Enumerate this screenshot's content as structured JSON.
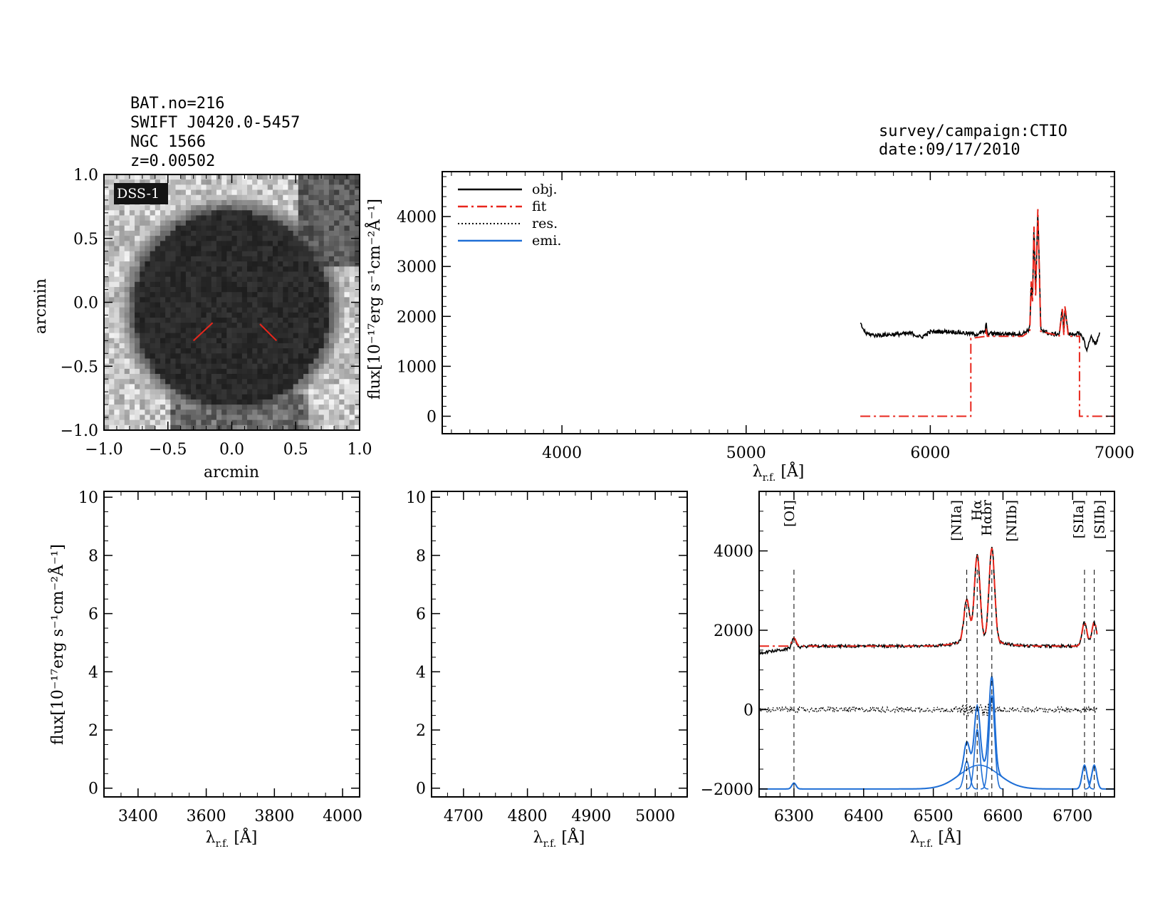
{
  "header": {
    "left_lines": [
      "BAT.no=216",
      "SWIFT J0420.0-5457",
      "NGC 1566",
      "z=0.00502"
    ],
    "right_lines": [
      "survey/campaign:CTIO",
      "date:09/17/2010"
    ]
  },
  "colors": {
    "obj": "#000000",
    "fit": "#e8261c",
    "res": "#000000",
    "emi": "#1f6fd6",
    "marker": "#e8261c"
  },
  "chart_data": [
    {
      "id": "image",
      "type": "heatmap",
      "label": "DSS-1",
      "xlabel": "arcmin",
      "ylabel": "arcmin",
      "xlim": [
        -1.0,
        1.0
      ],
      "ylim": [
        -1.0,
        1.0
      ],
      "xticks": [
        "−1.0",
        "−0.5",
        "0.0",
        "0.5",
        "1.0"
      ],
      "yticks": [
        "−1.0",
        "−0.5",
        "0.0",
        "0.5",
        "1.0"
      ],
      "xtick_values": [
        -1.0,
        -0.5,
        0.0,
        0.5,
        1.0
      ],
      "ytick_values": [
        -1.0,
        -0.5,
        0.0,
        0.5,
        1.0
      ],
      "source_center": [
        0.0,
        -0.05
      ],
      "source_radius_arcmin": 0.85,
      "marker_segments": [
        [
          [
            -0.3,
            -0.3
          ],
          [
            -0.15,
            -0.16
          ]
        ],
        [
          [
            0.35,
            -0.3
          ],
          [
            0.22,
            -0.17
          ]
        ]
      ]
    },
    {
      "id": "full",
      "type": "line",
      "xlabel": "λr.f. [Å]",
      "ylabel": "flux[10⁻¹⁷erg s⁻¹cm⁻²Å⁻¹]",
      "xlim": [
        3350,
        7000
      ],
      "ylim": [
        -350,
        4900
      ],
      "xticks": [
        "4000",
        "5000",
        "6000",
        "7000"
      ],
      "xtick_values": [
        4000,
        5000,
        6000,
        7000
      ],
      "yticks": [
        "0",
        "1000",
        "2000",
        "3000",
        "4000"
      ],
      "ytick_values": [
        0,
        1000,
        2000,
        3000,
        4000
      ],
      "legend": [
        "obj.",
        "fit",
        "res.",
        "emi."
      ],
      "legend_position": "top-left",
      "series": [
        {
          "name": "obj.",
          "x": [
            5620,
            5650,
            5700,
            5800,
            5900,
            5950,
            6000,
            6100,
            6200,
            6250,
            6300,
            6302,
            6310,
            6400,
            6500,
            6540,
            6548,
            6555,
            6563,
            6572,
            6584,
            6600,
            6650,
            6700,
            6717,
            6725,
            6731,
            6750,
            6800,
            6830,
            6850,
            6870,
            6900,
            6920
          ],
          "y": [
            1850,
            1660,
            1620,
            1640,
            1660,
            1580,
            1690,
            1700,
            1660,
            1640,
            1700,
            1900,
            1660,
            1650,
            1650,
            1750,
            2700,
            2300,
            3850,
            2400,
            4150,
            1750,
            1640,
            1650,
            2150,
            1650,
            2200,
            1640,
            1660,
            1580,
            1300,
            1600,
            1450,
            1650
          ]
        },
        {
          "name": "fit",
          "x": [
            5620,
            6220,
            6220,
            6300,
            6302,
            6310,
            6500,
            6540,
            6548,
            6555,
            6563,
            6572,
            6584,
            6600,
            6700,
            6717,
            6725,
            6731,
            6750,
            6810,
            6810,
            7000
          ],
          "y": [
            0,
            0,
            1560,
            1600,
            1760,
            1600,
            1600,
            1700,
            2700,
            2300,
            3800,
            2400,
            4150,
            1700,
            1610,
            2150,
            1620,
            2200,
            1600,
            1600,
            0,
            0
          ]
        }
      ]
    },
    {
      "id": "blue",
      "type": "line",
      "xlabel": "λr.f. [Å]",
      "ylabel": "flux[10⁻¹⁷erg s⁻¹cm⁻²Å⁻¹]",
      "xlim": [
        3300,
        4050
      ],
      "ylim": [
        -0.3,
        10.2
      ],
      "xticks": [
        "3400",
        "3600",
        "3800",
        "4000"
      ],
      "xtick_values": [
        3400,
        3600,
        3800,
        4000
      ],
      "yticks": [
        "0",
        "2",
        "4",
        "6",
        "8",
        "10"
      ],
      "ytick_values": [
        0,
        2,
        4,
        6,
        8,
        10
      ],
      "series": []
    },
    {
      "id": "hbeta",
      "type": "line",
      "xlabel": "λr.f. [Å]",
      "ylabel": "",
      "xlim": [
        4650,
        5050
      ],
      "ylim": [
        -0.3,
        10.2
      ],
      "xticks": [
        "4700",
        "4800",
        "4900",
        "5000"
      ],
      "xtick_values": [
        4700,
        4800,
        4900,
        5000
      ],
      "yticks": [
        "0",
        "2",
        "4",
        "6",
        "8",
        "10"
      ],
      "ytick_values": [
        0,
        2,
        4,
        6,
        8,
        10
      ],
      "series": []
    },
    {
      "id": "halpha",
      "type": "line",
      "xlabel": "λr.f. [Å]",
      "ylabel": "",
      "xlim": [
        6250,
        6760
      ],
      "ylim": [
        -2200,
        5500
      ],
      "xticks": [
        "6300",
        "6400",
        "6500",
        "6600",
        "6700"
      ],
      "xtick_values": [
        6300,
        6400,
        6500,
        6600,
        6700
      ],
      "yticks": [
        "−2000",
        "0",
        "2000",
        "4000"
      ],
      "ytick_values": [
        -2000,
        0,
        2000,
        4000
      ],
      "line_markers": [
        {
          "name": "[OI]",
          "x": 6300
        },
        {
          "name": "[NIIa]",
          "x": 6548
        },
        {
          "name": "Hα",
          "x": 6563
        },
        {
          "name": "Hαbr",
          "x": 6563
        },
        {
          "name": "[NIIb]",
          "x": 6584
        },
        {
          "name": "[SIIa]",
          "x": 6717
        },
        {
          "name": "[SIIb]",
          "x": 6731
        }
      ],
      "series": [
        {
          "name": "obj.",
          "baseline": 1600,
          "lines": [
            [
              6300,
              250,
              3
            ],
            [
              6548,
              1050,
              4
            ],
            [
              6563,
              2150,
              4
            ],
            [
              6584,
              2350,
              4
            ],
            [
              6717,
              600,
              3.5
            ],
            [
              6731,
              600,
              3.5
            ],
            [
              6566,
              150,
              28
            ]
          ]
        },
        {
          "name": "fit",
          "baseline": 1600,
          "lines": [
            [
              6300,
              200,
              3
            ],
            [
              6548,
              1050,
              4
            ],
            [
              6563,
              2150,
              4
            ],
            [
              6584,
              2350,
              4
            ],
            [
              6717,
              600,
              3.5
            ],
            [
              6731,
              600,
              3.5
            ],
            [
              6566,
              150,
              28
            ]
          ]
        },
        {
          "name": "res.",
          "baseline": 0,
          "lines": []
        },
        {
          "name": "emi.",
          "baseline": -2000,
          "lines": [
            [
              6300,
              150,
              3
            ],
            [
              6548,
              700,
              4
            ],
            [
              6563,
              1500,
              4
            ],
            [
              6584,
              2350,
              4
            ],
            [
              6717,
              600,
              3.5
            ],
            [
              6731,
              600,
              3.5
            ],
            [
              6566,
              600,
              28
            ]
          ]
        }
      ]
    }
  ]
}
